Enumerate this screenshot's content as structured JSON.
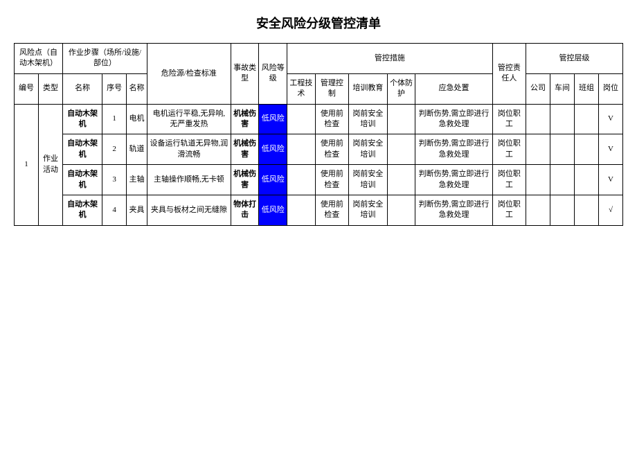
{
  "title": "安全风险分级管控清单",
  "header": {
    "risk_point": "风险点（自动木架机）",
    "steps": "作业步骤（场所/设施/部位）",
    "hazard": "危险源/检查标准",
    "accident_type": "事故类型",
    "risk_level": "风险等级",
    "control_measures": "管控措施",
    "responsible": "管控责任人",
    "control_level": "管控层级",
    "sub": {
      "no": "编号",
      "type": "类型",
      "name": "名称",
      "seq": "序号",
      "step_name": "名称",
      "engineering": "工程技术",
      "mgmt_control": "管理控制",
      "training": "培训教育",
      "ppe": "个体防护",
      "emergency": "应急处置",
      "company": "公司",
      "workshop": "车间",
      "team": "班组",
      "post": "岗位"
    }
  },
  "group": {
    "no": "1",
    "type": "作业活动"
  },
  "rows": [
    {
      "name": "自动木架机",
      "seq": "1",
      "step_name": "电机",
      "hazard": "电机运行平稳,无异响,无严重发热",
      "accident": "机械伤害",
      "risk_level": "低风险",
      "engineering": "",
      "mgmt": "使用前检查",
      "training": "岗前安全培训",
      "ppe": "",
      "emergency": "判断伤势,需立即进行急救处理",
      "responsible": "岗位职工",
      "company": "",
      "workshop": "",
      "team": "",
      "post": "V"
    },
    {
      "name": "自动木架机",
      "seq": "2",
      "step_name": "轨道",
      "hazard": "设备运行轨道无异物,润滑流畅",
      "accident": "机械伤害",
      "risk_level": "低风险",
      "engineering": "",
      "mgmt": "使用前检查",
      "training": "岗前安全培训",
      "ppe": "",
      "emergency": "判断伤势,需立即进行急救处理",
      "responsible": "岗位职工",
      "company": "",
      "workshop": "",
      "team": "",
      "post": "V"
    },
    {
      "name": "自动木架机",
      "seq": "3",
      "step_name": "主轴",
      "hazard": "主轴操作顺畅,无卡顿",
      "accident": "机械伤害",
      "risk_level": "低风险",
      "engineering": "",
      "mgmt": "使用前检查",
      "training": "岗前安全培训",
      "ppe": "",
      "emergency": "判断伤势,需立即进行急救处理",
      "responsible": "岗位职工",
      "company": "",
      "workshop": "",
      "team": "",
      "post": "V"
    },
    {
      "name": "自动木架机",
      "seq": "4",
      "step_name": "夹具",
      "hazard": "夹具与板材之间无缝隙",
      "accident": "物体打击",
      "risk_level": "低风险",
      "engineering": "",
      "mgmt": "使用前检查",
      "training": "岗前安全培训",
      "ppe": "",
      "emergency": "判断伤势,需立即进行急救处理",
      "responsible": "岗位职工",
      "company": "",
      "workshop": "",
      "team": "",
      "post": "√"
    }
  ],
  "colors": {
    "risk_bg": "#0000ff",
    "risk_fg": "#ffffff"
  }
}
